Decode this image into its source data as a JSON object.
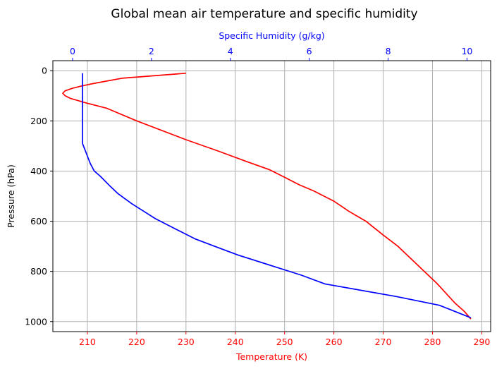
{
  "chart_data": {
    "type": "line",
    "title": "Global mean air temperature and specific humidity",
    "y_axis": {
      "label": "Pressure (hPa)",
      "ticks": [
        0,
        200,
        400,
        600,
        800,
        1000
      ],
      "range": [
        -40,
        1040
      ],
      "inverted": true
    },
    "x_axis_bottom": {
      "label": "Temperature (K)",
      "color": "#ff0000",
      "ticks": [
        210,
        220,
        230,
        240,
        250,
        260,
        270,
        280,
        290
      ],
      "range": [
        203,
        291.8
      ]
    },
    "x_axis_top": {
      "label": "Specific Humidity (g/kg)",
      "color": "#0000ff",
      "ticks": [
        0,
        2,
        4,
        6,
        8,
        10
      ],
      "range": [
        -0.5,
        10.6
      ]
    },
    "grid": true,
    "series": [
      {
        "axis": "bottom",
        "color": "#ff0000",
        "points": [
          [
            230.0,
            10
          ],
          [
            217.0,
            30
          ],
          [
            211.5,
            50
          ],
          [
            209.0,
            60
          ],
          [
            207.0,
            70
          ],
          [
            205.5,
            80
          ],
          [
            205.0,
            90
          ],
          [
            205.5,
            100
          ],
          [
            206.5,
            110
          ],
          [
            210.0,
            130
          ],
          [
            214.0,
            150
          ],
          [
            220.0,
            200
          ],
          [
            230.0,
            275
          ],
          [
            236.5,
            320
          ],
          [
            242.0,
            360
          ],
          [
            247.0,
            395
          ],
          [
            250.0,
            425
          ],
          [
            253.0,
            455
          ],
          [
            256.0,
            480
          ],
          [
            260.0,
            520
          ],
          [
            263.0,
            560
          ],
          [
            266.5,
            600
          ],
          [
            270.0,
            655
          ],
          [
            273.0,
            700
          ],
          [
            277.0,
            775
          ],
          [
            281.0,
            850
          ],
          [
            284.5,
            925
          ],
          [
            286.5,
            960
          ],
          [
            287.8,
            990
          ]
        ]
      },
      {
        "axis": "top",
        "color": "#0000ff",
        "points": [
          [
            0.25,
            10
          ],
          [
            0.25,
            100
          ],
          [
            0.25,
            200
          ],
          [
            0.25,
            290
          ],
          [
            0.3,
            310
          ],
          [
            0.45,
            370
          ],
          [
            0.55,
            400
          ],
          [
            0.7,
            420
          ],
          [
            0.95,
            460
          ],
          [
            1.15,
            490
          ],
          [
            1.5,
            530
          ],
          [
            1.8,
            560
          ],
          [
            2.1,
            590
          ],
          [
            2.6,
            630
          ],
          [
            3.1,
            670
          ],
          [
            3.6,
            700
          ],
          [
            4.2,
            735
          ],
          [
            5.0,
            775
          ],
          [
            5.8,
            815
          ],
          [
            6.4,
            850
          ],
          [
            8.2,
            900
          ],
          [
            9.3,
            935
          ],
          [
            10.1,
            985
          ]
        ]
      }
    ]
  }
}
